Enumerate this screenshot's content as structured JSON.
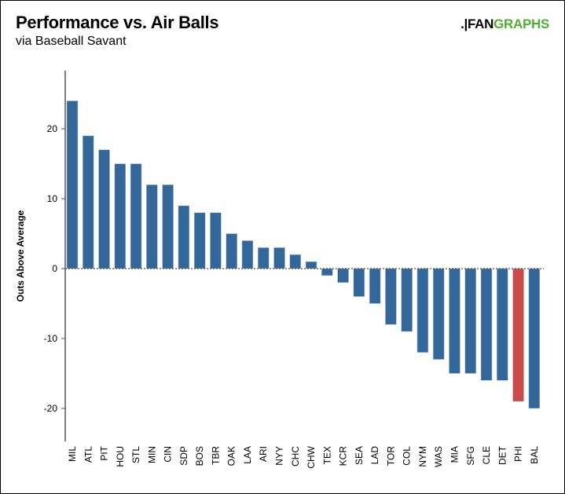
{
  "header": {
    "title": "Performance vs. Air Balls",
    "subtitle": "via Baseball Savant",
    "logo_text": ".FANGRAPHS"
  },
  "colors": {
    "bar": "#336699",
    "highlight": "#cc4a4a",
    "logo_green": "#4db030"
  },
  "chart_data": {
    "type": "bar",
    "title": "Performance vs. Air Balls",
    "subtitle": "via Baseball Savant",
    "xlabel": "",
    "ylabel": "Outs Above Average",
    "ylim": [
      -24.5,
      28
    ],
    "yticks": [
      20,
      10,
      0,
      -10,
      -20
    ],
    "grid": false,
    "legend": "none",
    "highlight": "PHI",
    "categories": [
      "MIL",
      "ATL",
      "PIT",
      "HOU",
      "STL",
      "MIN",
      "CIN",
      "SDP",
      "BOS",
      "TBR",
      "OAK",
      "LAA",
      "ARI",
      "NYY",
      "CHC",
      "CHW",
      "TEX",
      "KCR",
      "SEA",
      "LAD",
      "TOR",
      "COL",
      "NYM",
      "WAS",
      "MIA",
      "SFG",
      "CLE",
      "DET",
      "PHI",
      "BAL"
    ],
    "values": [
      24,
      19,
      17,
      15,
      15,
      12,
      12,
      9,
      8,
      8,
      5,
      4,
      3,
      3,
      2,
      1,
      -1,
      -2,
      -4,
      -5,
      -8,
      -9,
      -12,
      -13,
      -15,
      -15,
      -16,
      -16,
      -19,
      -20
    ]
  }
}
